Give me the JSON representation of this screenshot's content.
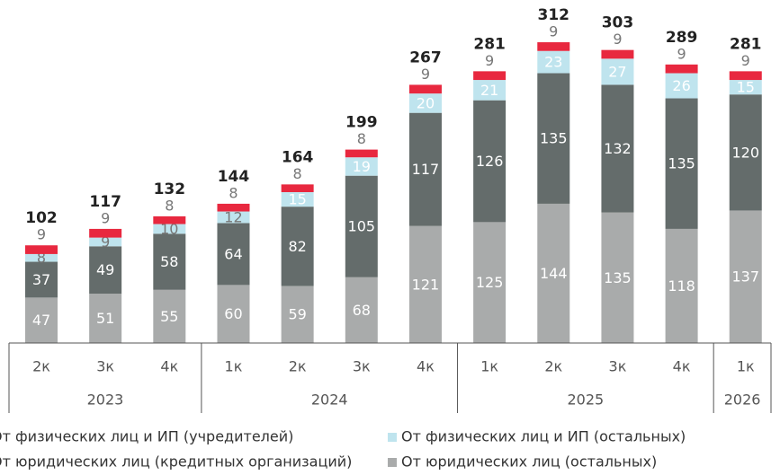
{
  "chart_data": {
    "type": "stacked_bar",
    "groups": [
      {
        "label": "2023",
        "categories": [
          "2к",
          "3к",
          "4к"
        ]
      },
      {
        "label": "2024",
        "categories": [
          "1к",
          "2к",
          "3к",
          "4к"
        ]
      },
      {
        "label": "2025",
        "categories": [
          "1к",
          "2к",
          "3к",
          "4к"
        ]
      },
      {
        "label": "2026",
        "categories": [
          "1к"
        ]
      }
    ],
    "series": [
      {
        "name": "От юридических лиц (остальных)",
        "color": "#a9abab",
        "values": [
          47,
          51,
          55,
          60,
          59,
          68,
          121,
          125,
          144,
          135,
          118,
          137
        ]
      },
      {
        "name": "От юридических лиц (кредитных организаций)",
        "color": "#646c6b",
        "values": [
          37,
          49,
          58,
          64,
          82,
          105,
          117,
          126,
          135,
          132,
          135,
          120
        ]
      },
      {
        "name": "От физических лиц и ИП (остальных)",
        "color": "#bfe4ee",
        "values": [
          8,
          9,
          10,
          12,
          15,
          19,
          20,
          21,
          23,
          27,
          26,
          15
        ]
      },
      {
        "name": "От физических лиц и ИП (учредителей)",
        "color": "#e8283f",
        "values": [
          9,
          9,
          8,
          8,
          8,
          8,
          9,
          9,
          9,
          9,
          9,
          9
        ]
      }
    ],
    "totals": [
      102,
      117,
      132,
      144,
      164,
      199,
      267,
      281,
      312,
      303,
      289,
      281
    ]
  }
}
